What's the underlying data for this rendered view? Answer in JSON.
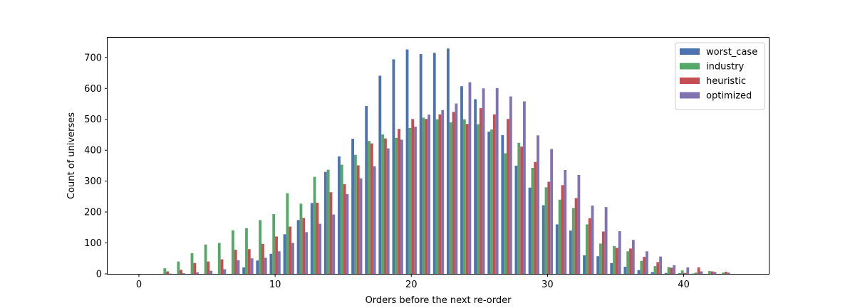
{
  "chart_data": {
    "type": "bar",
    "xlabel": "Orders before the next re-order",
    "ylabel": "Count of universes",
    "xlim": [
      -2.3,
      46.3
    ],
    "ylim": [
      0,
      764
    ],
    "xticks": [
      0,
      10,
      20,
      30,
      40
    ],
    "yticks": [
      0,
      100,
      200,
      300,
      400,
      500,
      600,
      700
    ],
    "grid": false,
    "legend_position": "top-right",
    "x": [
      2,
      3,
      4,
      5,
      6,
      7,
      8,
      9,
      10,
      11,
      12,
      13,
      14,
      15,
      16,
      17,
      18,
      19,
      20,
      21,
      22,
      23,
      24,
      25,
      26,
      27,
      28,
      29,
      30,
      31,
      32,
      33,
      34,
      35,
      36,
      37,
      38,
      39,
      40,
      41,
      42,
      43
    ],
    "series": [
      {
        "name": "worst_case",
        "color": "#4c72b0",
        "values": [
          0,
          0,
          0,
          0,
          0,
          0,
          21,
          43,
          65,
          128,
          174,
          229,
          330,
          380,
          437,
          543,
          641,
          694,
          726,
          711,
          715,
          729,
          607,
          565,
          460,
          449,
          350,
          279,
          222,
          160,
          140,
          60,
          57,
          35,
          23,
          12,
          6,
          3,
          2,
          1,
          0,
          0
        ]
      },
      {
        "name": "industry",
        "color": "#55a868",
        "values": [
          18,
          40,
          67,
          95,
          100,
          141,
          148,
          174,
          193,
          261,
          227,
          314,
          337,
          353,
          385,
          430,
          451,
          440,
          472,
          505,
          500,
          490,
          500,
          484,
          467,
          390,
          424,
          343,
          280,
          240,
          213,
          160,
          98,
          90,
          73,
          42,
          25,
          22,
          11,
          4,
          9,
          4
        ]
      },
      {
        "name": "heuristic",
        "color": "#c44e52",
        "values": [
          8,
          13,
          35,
          40,
          47,
          78,
          80,
          97,
          121,
          153,
          181,
          230,
          264,
          290,
          351,
          422,
          438,
          469,
          501,
          501,
          516,
          524,
          485,
          536,
          516,
          501,
          412,
          362,
          298,
          287,
          245,
          180,
          137,
          84,
          82,
          55,
          38,
          20,
          3,
          21,
          8,
          7
        ]
      },
      {
        "name": "optimized",
        "color": "#8172b2",
        "values": [
          1,
          2,
          5,
          10,
          15,
          44,
          50,
          52,
          73,
          100,
          135,
          162,
          192,
          258,
          309,
          348,
          406,
          434,
          476,
          515,
          530,
          551,
          620,
          600,
          601,
          574,
          558,
          448,
          404,
          336,
          320,
          221,
          216,
          138,
          110,
          73,
          56,
          28,
          21,
          8,
          6,
          4
        ]
      }
    ]
  }
}
